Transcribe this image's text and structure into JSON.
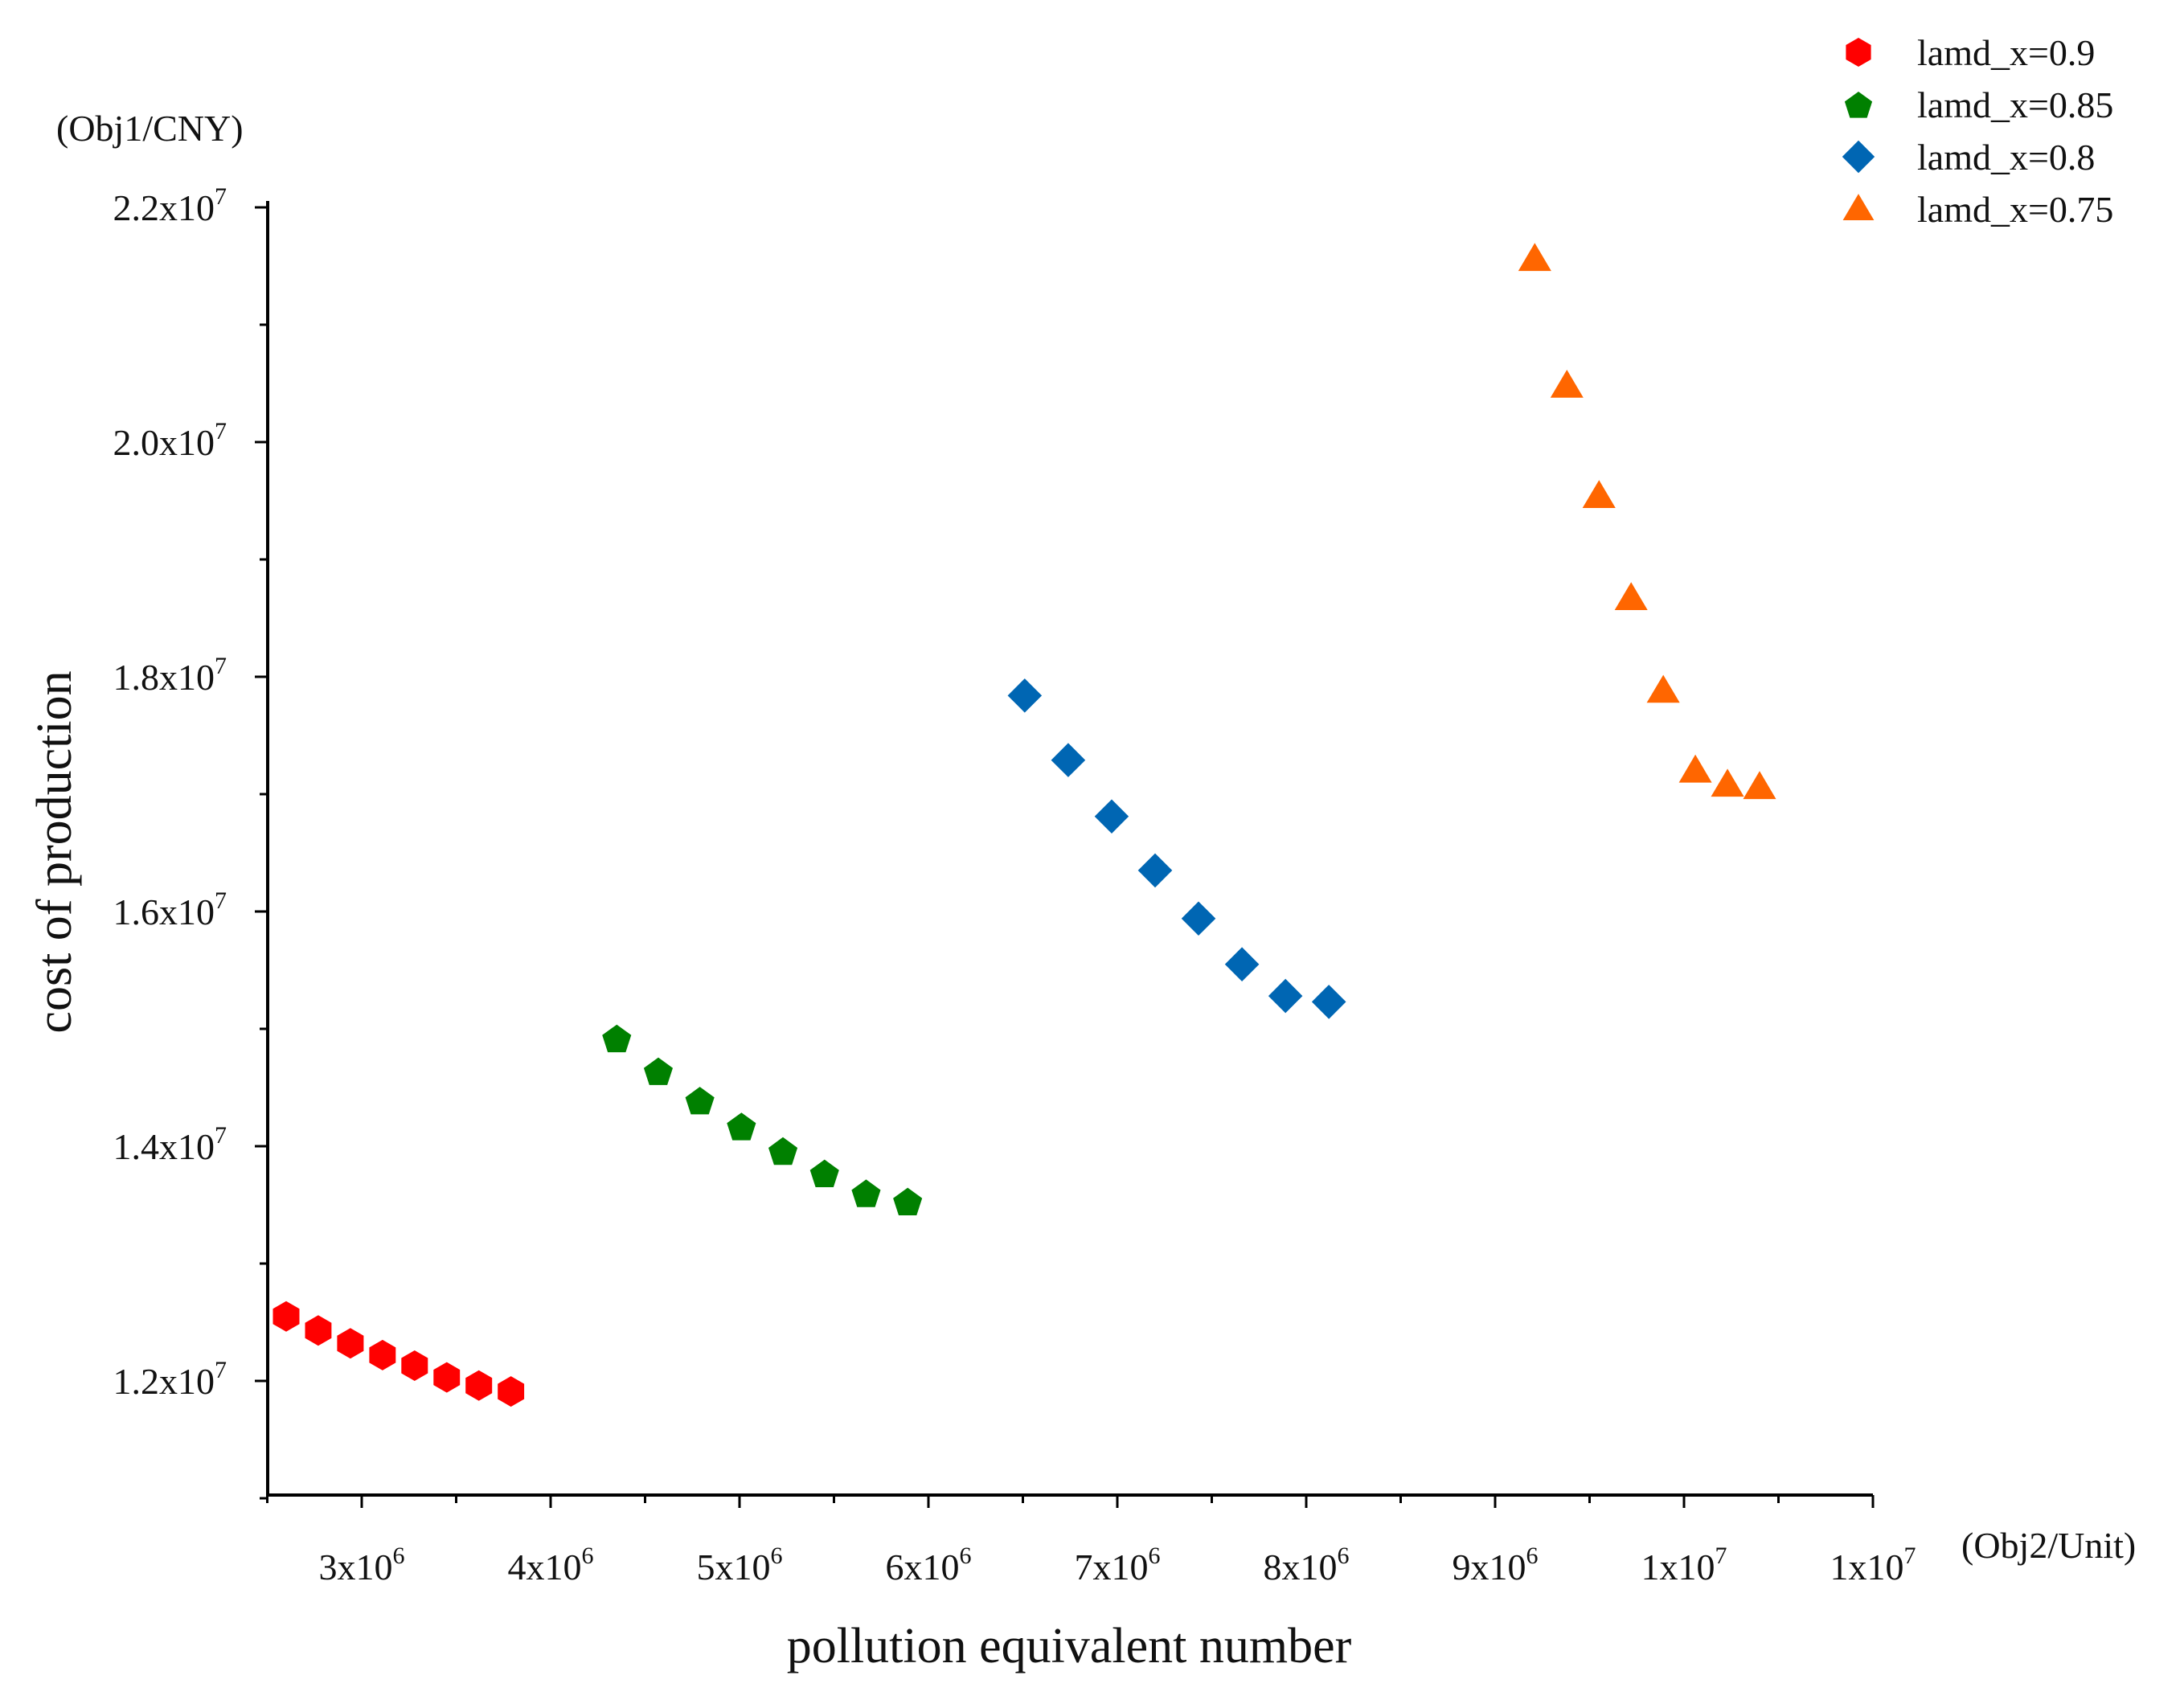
{
  "chart_data": {
    "type": "scatter",
    "title": "",
    "xlabel": "pollution equivalent number",
    "ylabel": "cost of production",
    "x_unit": "(Obj2/Unit)",
    "y_unit": "(Obj1/CNY)",
    "xlim": [
      2500000,
      11000000
    ],
    "ylim": [
      11000000,
      22000000
    ],
    "grid": false,
    "legend_position": "top-right",
    "x_ticks": [
      {
        "value": 3000000,
        "mantissa": "3x10",
        "exp": "6"
      },
      {
        "value": 4000000,
        "mantissa": "4x10",
        "exp": "6"
      },
      {
        "value": 5000000,
        "mantissa": "5x10",
        "exp": "6"
      },
      {
        "value": 6000000,
        "mantissa": "6x10",
        "exp": "6"
      },
      {
        "value": 7000000,
        "mantissa": "7x10",
        "exp": "6"
      },
      {
        "value": 8000000,
        "mantissa": "8x10",
        "exp": "6"
      },
      {
        "value": 9000000,
        "mantissa": "9x10",
        "exp": "6"
      },
      {
        "value": 10000000,
        "mantissa": "1x10",
        "exp": "7"
      },
      {
        "value": 11000000,
        "mantissa": "1x10",
        "exp": "7"
      }
    ],
    "y_ticks": [
      {
        "value": 12000000,
        "mantissa": "1.2x10",
        "exp": "7"
      },
      {
        "value": 14000000,
        "mantissa": "1.4x10",
        "exp": "7"
      },
      {
        "value": 16000000,
        "mantissa": "1.6x10",
        "exp": "7"
      },
      {
        "value": 18000000,
        "mantissa": "1.8x10",
        "exp": "7"
      },
      {
        "value": 20000000,
        "mantissa": "2.0x10",
        "exp": "7"
      },
      {
        "value": 22000000,
        "mantissa": "2.2x10",
        "exp": "7"
      }
    ],
    "series": [
      {
        "name": "lamd_x=0.9",
        "marker": "hexagon",
        "color": "#ff0000",
        "x": [
          2600000,
          2770000,
          2940000,
          3110000,
          3280000,
          3450000,
          3620000,
          3790000
        ],
        "y": [
          12550000,
          12430000,
          12320000,
          12220000,
          12130000,
          12030000,
          11960000,
          11910000
        ]
      },
      {
        "name": "lamd_x=0.85",
        "marker": "pentagon",
        "color": "#008000",
        "x": [
          4350000,
          4570000,
          4790000,
          5010000,
          5230000,
          5450000,
          5670000,
          5890000
        ],
        "y": [
          14920000,
          14640000,
          14390000,
          14170000,
          13960000,
          13770000,
          13600000,
          13530000
        ]
      },
      {
        "name": "lamd_x=0.8",
        "marker": "diamond",
        "color": "#0066b3",
        "x": [
          6510000,
          6740000,
          6970000,
          7200000,
          7430000,
          7660000,
          7890000,
          8120000
        ],
        "y": [
          17840000,
          17290000,
          16810000,
          16350000,
          15940000,
          15550000,
          15280000,
          15230000
        ]
      },
      {
        "name": "lamd_x=0.75",
        "marker": "triangle",
        "color": "#ff6600",
        "x": [
          9210000,
          9380000,
          9550000,
          9720000,
          9890000,
          10060000,
          10230000,
          10400000
        ],
        "y": [
          21560000,
          20480000,
          19540000,
          18670000,
          17880000,
          17200000,
          17080000,
          17060000
        ]
      }
    ]
  }
}
